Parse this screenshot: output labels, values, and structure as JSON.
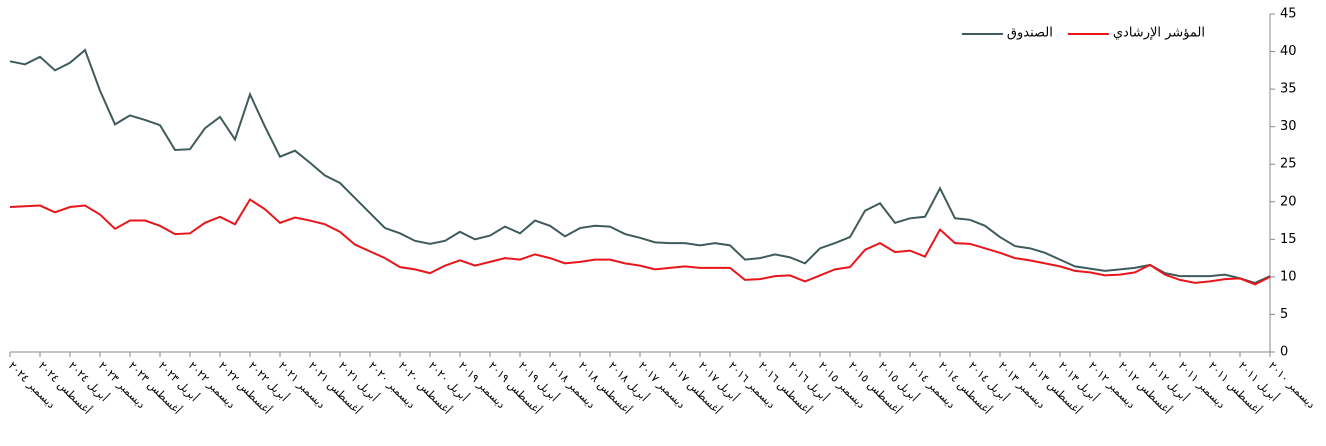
{
  "chart_data": {
    "type": "line",
    "categories": [
      "ديسمبر ٢٠٢٤",
      null,
      "أغسطس ٢٠٢٤",
      null,
      "أبريل ٢٠٢٤",
      null,
      "ديسمبر ٢٠٢٣",
      null,
      "أغسطس ٢٠٢٣",
      null,
      "أبريل ٢٠٢٣",
      null,
      "ديسمبر ٢٠٢٢",
      null,
      "أغسطس ٢٠٢٢",
      null,
      "أبريل ٢٠٢٢",
      null,
      "ديسمبر ٢٠٢١",
      null,
      "أغسطس ٢٠٢١",
      null,
      "أبريل ٢٠٢١",
      null,
      "ديسمبر ٢٠٢٠",
      null,
      "أغسطس ٢٠٢٠",
      null,
      "أبريل ٢٠٢٠",
      null,
      "ديسمبر ٢٠١٩",
      null,
      "أغسطس ٢٠١٩",
      null,
      "أبريل ٢٠١٩",
      null,
      "ديسمبر ٢٠١٨",
      null,
      "أغسطس ٢٠١٨",
      null,
      "أبريل ٢٠١٨",
      null,
      "ديسمبر ٢٠١٧",
      null,
      "أغسطس ٢٠١٧",
      null,
      "أبريل ٢٠١٧",
      null,
      "ديسمبر ٢٠١٦",
      null,
      "أغسطس ٢٠١٦",
      null,
      "أبريل ٢٠١٦",
      null,
      "ديسمبر ٢٠١٥",
      null,
      "أغسطس ٢٠١٥",
      null,
      "أبريل ٢٠١٥",
      null,
      "ديسمبر ٢٠١٤",
      null,
      "أغسطس ٢٠١٤",
      null,
      "أبريل ٢٠١٤",
      null,
      "ديسمبر ٢٠١٣",
      null,
      "أغسطس ٢٠١٣",
      null,
      "أبريل ٢٠١٣",
      null,
      "ديسمبر ٢٠١٢",
      null,
      "أغسطس ٢٠١٢",
      null,
      "أبريل ٢٠١٢",
      null,
      "ديسمبر ٢٠١١",
      null,
      "أغسطس ٢٠١١",
      null,
      "أبريل ٢٠١١",
      null,
      "ديسمبر ٢٠١٠"
    ],
    "series": [
      {
        "name": "الصندوق",
        "color": "#3f5b5b",
        "values": [
          38.7,
          38.3,
          39.3,
          37.5,
          38.5,
          40.2,
          34.8,
          30.3,
          31.5,
          30.9,
          30.2,
          26.9,
          27,
          29.8,
          31.3,
          28.3,
          34.3,
          30,
          26,
          26.8,
          25.2,
          23.5,
          22.5,
          20.5,
          18.5,
          16.5,
          15.8,
          14.8,
          14.4,
          14.8,
          16,
          15,
          15.5,
          16.7,
          15.8,
          17.5,
          16.8,
          15.4,
          16.5,
          16.8,
          16.7,
          15.7,
          15.2,
          14.6,
          14.5,
          14.5,
          14.2,
          14.5,
          14.2,
          12.3,
          12.5,
          13,
          12.6,
          11.8,
          13.8,
          14.5,
          15.3,
          18.8,
          19.8,
          17.2,
          17.8,
          18,
          21.8,
          17.8,
          17.6,
          16.8,
          15.3,
          14.1,
          13.8,
          13.2,
          12.3,
          11.4,
          11.1,
          10.8,
          11,
          11.2,
          11.6,
          10.5,
          10.1,
          10.1,
          10.1,
          10.3,
          9.8,
          9.2,
          10.1
        ]
      },
      {
        "name": "المؤشر الإرشادي",
        "color": "#e8161b",
        "values": [
          19.3,
          19.4,
          19.5,
          18.6,
          19.3,
          19.5,
          18.3,
          16.4,
          17.5,
          17.5,
          16.8,
          15.7,
          15.8,
          17.2,
          18,
          17,
          20.3,
          19,
          17.2,
          17.9,
          17.5,
          17,
          16,
          14.3,
          13.4,
          12.5,
          11.3,
          11,
          10.5,
          11.5,
          12.2,
          11.5,
          12,
          12.5,
          12.3,
          13,
          12.5,
          11.8,
          12,
          12.3,
          12.3,
          11.8,
          11.5,
          11,
          11.2,
          11.4,
          11.2,
          11.2,
          11.2,
          9.6,
          9.7,
          10.1,
          10.2,
          9.4,
          10.2,
          11,
          11.3,
          13.6,
          14.5,
          13.3,
          13.5,
          12.7,
          16.3,
          14.5,
          14.4,
          13.8,
          13.2,
          12.5,
          12.2,
          11.8,
          11.4,
          10.8,
          10.6,
          10.2,
          10.3,
          10.6,
          11.6,
          10.3,
          9.6,
          9.2,
          9.4,
          9.7,
          9.8,
          9,
          10
        ]
      }
    ],
    "ylim": [
      0,
      45
    ],
    "yticks": [
      0,
      5,
      10,
      15,
      20,
      25,
      30,
      35,
      40,
      45
    ],
    "grid": false,
    "legend": "top-right"
  }
}
